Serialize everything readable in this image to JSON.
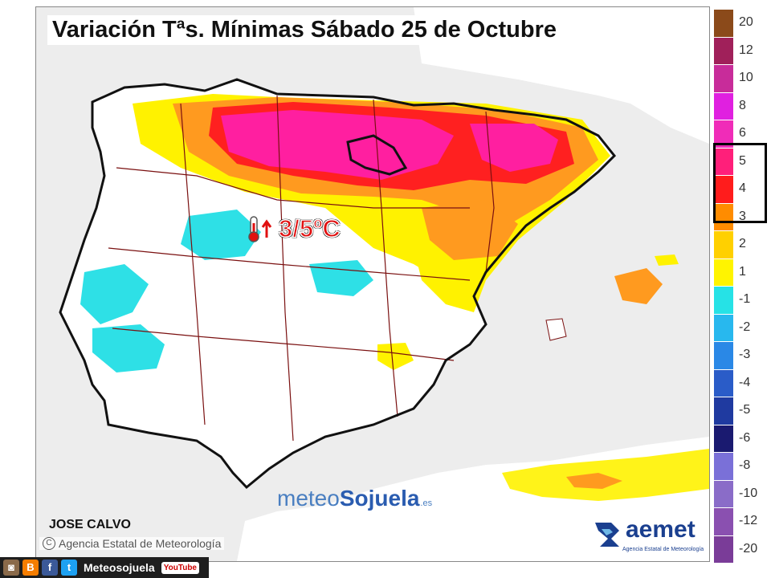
{
  "map": {
    "title": "Variación Tªs. Mínimas Sábado 25 de Octubre",
    "annotation": "3/5ºC",
    "author": "JOSE CALVO",
    "agency": "Agencia Estatal de Meteorología",
    "watermark_main": "meteo",
    "watermark_brand": "Sojuela",
    "watermark_tld": ".es",
    "logo_name": "aemet",
    "logo_sub": "Agencia Estatal de Meteorología",
    "colors": {
      "sea": "#f2f2f2",
      "land": "#ffffff",
      "yellow": "#fff200",
      "orange": "#ff9a1f",
      "red": "#ff2020",
      "magenta": "#ff1fa0",
      "cyan": "#2ee0e6",
      "border_dark": "#111111",
      "province": "#7a1010"
    }
  },
  "legend": {
    "labels": [
      "20",
      "12",
      "10",
      "8",
      "6",
      "5",
      "4",
      "3",
      "2",
      "1",
      "-1",
      "-2",
      "-3",
      "-4",
      "-5",
      "-6",
      "-8",
      "-10",
      "-12",
      "-20"
    ],
    "colors": [
      "#8b4a1a",
      "#a0205a",
      "#c82c9a",
      "#e020e0",
      "#f02cb8",
      "#ff1f7a",
      "#ff1c1c",
      "#ff8c00",
      "#ffd000",
      "#fff400",
      "#26e2e6",
      "#28b8ee",
      "#2a88e6",
      "#2a5cc8",
      "#1f3aa0",
      "#1a1a70",
      "#7a70d8",
      "#8a6cc8",
      "#8a50b0",
      "#7a3c98"
    ],
    "highlight": [
      "5",
      "4",
      "3"
    ]
  },
  "social": {
    "name": "Meteosojuela",
    "youtube": "YouTube"
  }
}
